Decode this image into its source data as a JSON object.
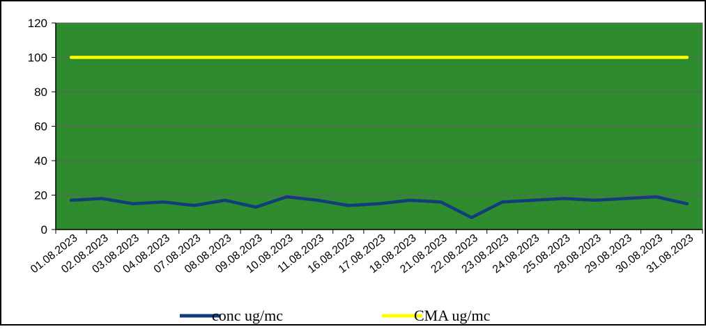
{
  "chart_data": {
    "type": "line",
    "title": "",
    "xlabel": "",
    "ylabel": "",
    "ylim": [
      0,
      120
    ],
    "yticks": [
      0,
      20,
      40,
      60,
      80,
      100,
      120
    ],
    "grid": true,
    "legend_position": "bottom",
    "plot_background": "#2e8b2e",
    "categories": [
      "01.08.2023",
      "02.08.2023",
      "03.08.2023",
      "04.08.2023",
      "07.08.2023",
      "08.08.2023",
      "09.08.2023",
      "10.08.2023",
      "11.08.2023",
      "16.08.2023",
      "17.08.2023",
      "18.08.2023",
      "21.08.2023",
      "22.08.2023",
      "23.08.2023",
      "24.08.2023",
      "25.08.2023",
      "28.08.2023",
      "29.08.2023",
      "30.08.2023",
      "31.08.2023"
    ],
    "series": [
      {
        "name": "conc ug/mc",
        "color": "#123d7a",
        "values": [
          17,
          18,
          15,
          16,
          14,
          17,
          13,
          19,
          17,
          14,
          15,
          17,
          16,
          7,
          16,
          17,
          18,
          17,
          18,
          19,
          15
        ]
      },
      {
        "name": "CMA ug/mc",
        "color": "#ffff00",
        "values": [
          100,
          100,
          100,
          100,
          100,
          100,
          100,
          100,
          100,
          100,
          100,
          100,
          100,
          100,
          100,
          100,
          100,
          100,
          100,
          100,
          100
        ]
      }
    ]
  }
}
